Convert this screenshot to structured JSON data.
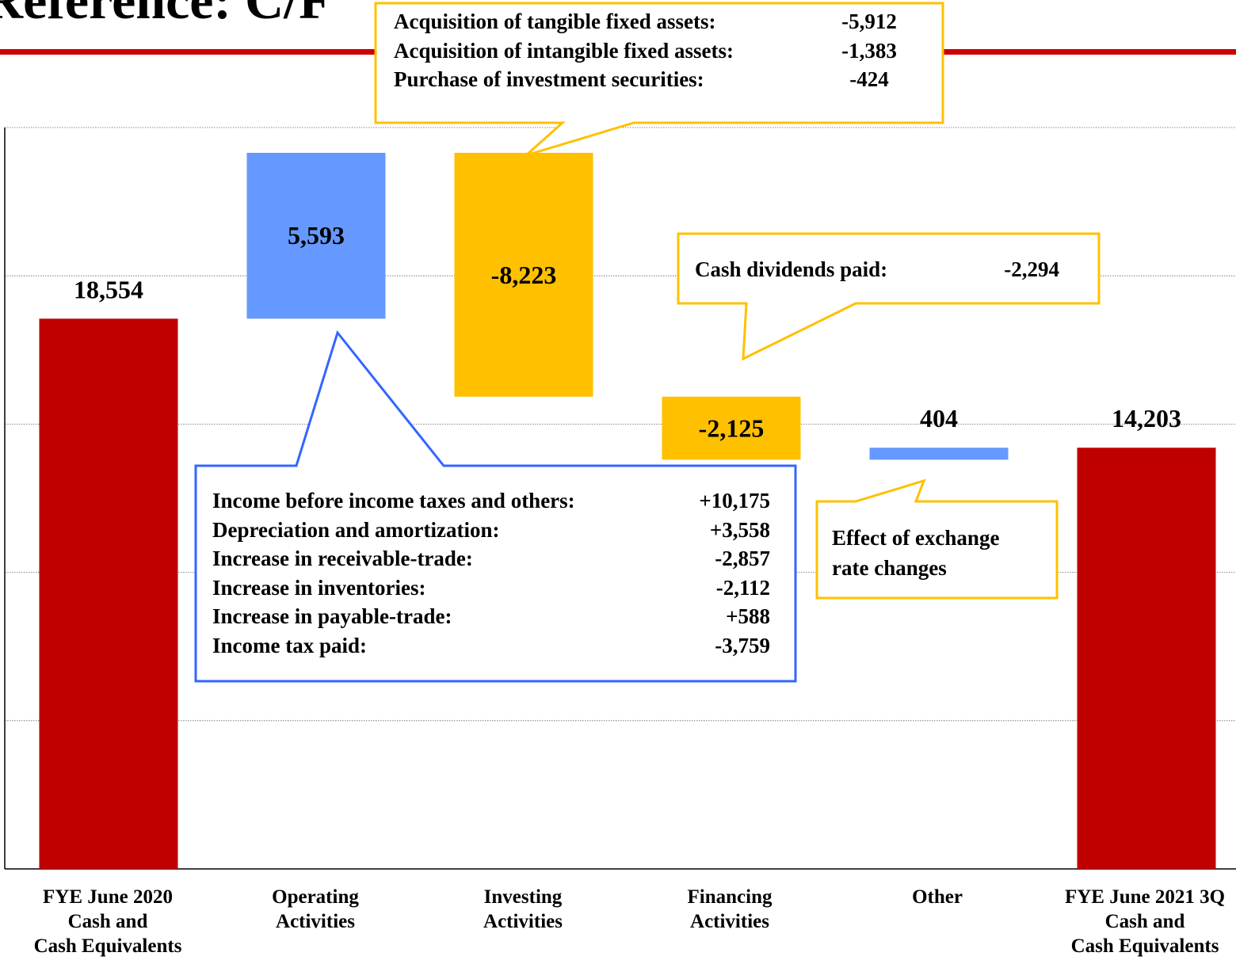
{
  "title": "Reference: C/F",
  "colors": {
    "end_bar": "#c00000",
    "positive": "#6699ff",
    "negative": "#ffc000",
    "callout_investing": "#ffc000",
    "callout_operating": "#3366ff",
    "title_rule": "#cc0000"
  },
  "chart_data": {
    "type": "waterfall",
    "categories": [
      [
        "FYE June 2020",
        "Cash and",
        "Cash Equivalents"
      ],
      [
        "Operating",
        "Activities"
      ],
      [
        "Investing",
        "Activities"
      ],
      [
        "Financing",
        "Activities"
      ],
      [
        "Other"
      ],
      [
        "FYE June 2021 3Q",
        "Cash and",
        "Cash Equivalents"
      ]
    ],
    "values": [
      18554,
      5593,
      -8223,
      -2125,
      404,
      14203
    ],
    "value_labels": [
      "18,554",
      "5,593",
      "-8,223",
      "-2,125",
      "404",
      "14,203"
    ],
    "kinds": [
      "total",
      "delta",
      "delta",
      "delta",
      "delta",
      "total"
    ],
    "ylim": [
      0,
      25000
    ],
    "gridlines": [
      5000,
      10000,
      15000,
      20000,
      25000
    ],
    "grid": true
  },
  "callouts": {
    "investing": {
      "items": [
        {
          "label": "Acquisition of tangible fixed assets:",
          "value": "-5,912"
        },
        {
          "label": "Acquisition of intangible fixed assets:",
          "value": "-1,383"
        },
        {
          "label": "Purchase of investment securities:",
          "value": "-424"
        }
      ]
    },
    "financing": {
      "items": [
        {
          "label": "Cash dividends paid:",
          "value": "-2,294"
        }
      ]
    },
    "operating": {
      "items": [
        {
          "label": "Income before income taxes and others:",
          "value": "+10,175"
        },
        {
          "label": "Depreciation and amortization:",
          "value": "+3,558"
        },
        {
          "label": "Increase in receivable-trade:",
          "value": "-2,857"
        },
        {
          "label": "Increase in inventories:",
          "value": "-2,112"
        },
        {
          "label": "Increase in payable-trade:",
          "value": "+588"
        },
        {
          "label": "Income tax paid:",
          "value": "-3,759"
        }
      ]
    },
    "other": {
      "lines": [
        "Effect of exchange",
        "rate changes"
      ]
    }
  }
}
